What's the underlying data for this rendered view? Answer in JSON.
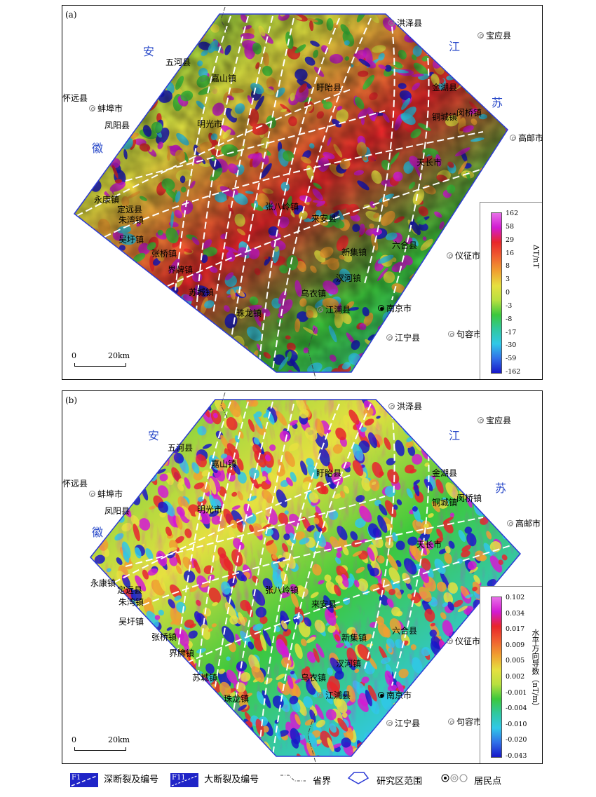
{
  "panels": [
    {
      "id": "a",
      "label": "(a)",
      "province_labels": {
        "anhui_1": "安",
        "anhui_2": "徽",
        "jiangsu_1": "江",
        "jiangsu_2": "苏"
      },
      "places": [
        "洪泽县",
        "宝应县",
        "五河县",
        "金湖县",
        "怀远县",
        "蚌埠市",
        "凤阳县",
        "闵桥镇",
        "高邮市",
        "天长市",
        "张八岭镇",
        "来安县",
        "仪征市",
        "六合县",
        "新集镇",
        "南京市",
        "江浦县",
        "江宁县",
        "句容市",
        "永康镇",
        "定远县",
        "朱湾镇",
        "吴圩镇",
        "张桥镇",
        "界牌镇",
        "苏城镇",
        "明光市",
        "嘉山镇",
        "盱眙县",
        "铜城镇",
        "汊河镇",
        "乌衣镇",
        "珠龙镇"
      ],
      "colorbar": {
        "title": "ΔT/nT",
        "ticks": [
          "162",
          "58",
          "29",
          "16",
          "8",
          "3",
          "0",
          "-3",
          "-8",
          "-17",
          "-30",
          "-59",
          "-162"
        ]
      },
      "scale": {
        "start": "0",
        "end": "20km"
      }
    },
    {
      "id": "b",
      "label": "(b)",
      "province_labels": {
        "anhui_1": "安",
        "anhui_2": "徽",
        "jiangsu_1": "江",
        "jiangsu_2": "苏"
      },
      "places": [
        "洪泽县",
        "宝应县",
        "五河县",
        "金湖县",
        "怀远县",
        "蚌埠市",
        "凤阳县",
        "闵桥镇",
        "高邮市",
        "天长市",
        "张八岭镇",
        "来安县",
        "仪征市",
        "六合县",
        "新集镇",
        "南京市",
        "江浦县",
        "江宁县",
        "句容市",
        "永康镇",
        "定远县",
        "朱湾镇",
        "吴圩镇",
        "张桥镇",
        "界牌镇",
        "苏城镇",
        "明光市",
        "嘉山镇",
        "盱眙县",
        "铜城镇",
        "汊河镇",
        "乌衣镇",
        "珠龙镇"
      ],
      "colorbar": {
        "title": "水平方向导数（nT/m）",
        "ticks": [
          "0.102",
          "0.034",
          "0.017",
          "0.009",
          "0.005",
          "0.002",
          "-0.001",
          "-0.004",
          "-0.010",
          "-0.020",
          "-0.043"
        ]
      },
      "scale": {
        "start": "0",
        "end": "20km"
      }
    }
  ],
  "colors": {
    "magenta": "#d21bd2",
    "red": "#e8262a",
    "orange": "#f0a030",
    "yellow": "#e6e040",
    "green": "#3cc83c",
    "cyan": "#30c8e8",
    "blue": "#1818c8",
    "study_area_border": "#2b3ad6",
    "province_label": "#2b4bc9",
    "fault_line": "#ffffff"
  },
  "legend": {
    "deep_fault": {
      "symbol": "F1",
      "label": "深断裂及编号"
    },
    "major_fault": {
      "symbol": "F11",
      "label": "大断裂及编号"
    },
    "province_border": {
      "label": "省界"
    },
    "study_area": {
      "label": "研究区范围"
    },
    "settlement": {
      "label": "居民点"
    }
  }
}
